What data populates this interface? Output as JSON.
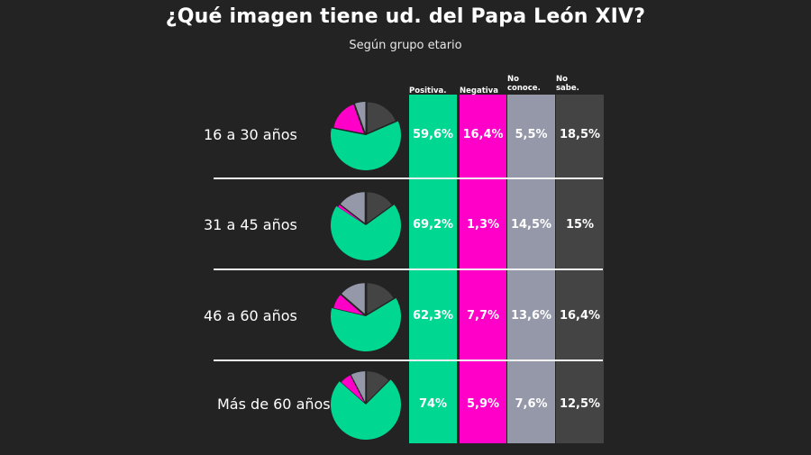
{
  "title": "¿Qué imagen tiene ud. del Papa León XIV?",
  "subtitle": "Según grupo etario",
  "chart_data": {
    "type": "table",
    "title": "¿Qué imagen tiene ud. del Papa León XIV?",
    "subtitle": "Según grupo etario",
    "columns": [
      {
        "label": "Positiva.",
        "color": "#00d891"
      },
      {
        "label": "Negativa",
        "color": "#ff00c8"
      },
      {
        "label": "No conoce.",
        "color": "#9598a9"
      },
      {
        "label": "No sabe.",
        "color": "#444444"
      }
    ],
    "rows": [
      {
        "group": "16 a 30 años",
        "values": [
          59.6,
          16.4,
          5.5,
          18.5
        ],
        "labels": [
          "59,6%",
          "16,4%",
          "5,5%",
          "18,5%"
        ]
      },
      {
        "group": "31 a 45 años",
        "values": [
          69.2,
          1.3,
          14.5,
          15
        ],
        "labels": [
          "69,2%",
          "1,3%",
          "14,5%",
          "15%"
        ]
      },
      {
        "group": "46 a 60 años",
        "values": [
          62.3,
          7.7,
          13.6,
          16.4
        ],
        "labels": [
          "62,3%",
          "7,7%",
          "13,6%",
          "16,4%"
        ]
      },
      {
        "group": "Más de 60 años",
        "values": [
          74,
          5.9,
          7.6,
          12.5
        ],
        "labels": [
          "74%",
          "5,9%",
          "7,6%",
          "12,5%"
        ]
      }
    ]
  }
}
